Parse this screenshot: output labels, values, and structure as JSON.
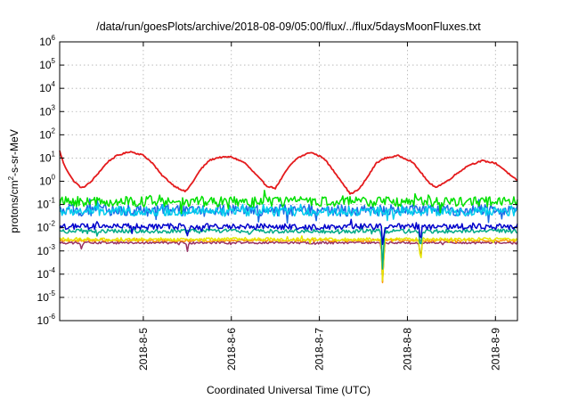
{
  "chart_data": {
    "type": "line",
    "title": "/data/run/goesPlots/archive/2018-08-09/05:00/flux/../flux/5daysMoonFluxes.txt",
    "xlabel": "Coordinated Universal Time (UTC)",
    "ylabel": "protons/cm2-s-sr-MeV",
    "ylabel_parts": {
      "pre": "protons/cm",
      "sup": "2",
      "post": "-s-sr-MeV"
    },
    "yscale": "log",
    "ylim_exp": [
      -6,
      6
    ],
    "y_ticks": [
      {
        "base": "10",
        "exp": "-6",
        "e": -6
      },
      {
        "base": "10",
        "exp": "-5",
        "e": -5
      },
      {
        "base": "10",
        "exp": "-4",
        "e": -4
      },
      {
        "base": "10",
        "exp": "-3",
        "e": -3
      },
      {
        "base": "10",
        "exp": "-2",
        "e": -2
      },
      {
        "base": "10",
        "exp": "-1",
        "e": -1
      },
      {
        "base": "10",
        "exp": "0",
        "e": 0
      },
      {
        "base": "10",
        "exp": "1",
        "e": 1
      },
      {
        "base": "10",
        "exp": "2",
        "e": 2
      },
      {
        "base": "10",
        "exp": "3",
        "e": 3
      },
      {
        "base": "10",
        "exp": "4",
        "e": 4
      },
      {
        "base": "10",
        "exp": "5",
        "e": 5
      },
      {
        "base": "10",
        "exp": "6",
        "e": 6
      }
    ],
    "xlim_days": [
      4.05,
      9.25
    ],
    "x_ticks": [
      {
        "label": "2018-8-5",
        "day": 5
      },
      {
        "label": "2018-8-6",
        "day": 6
      },
      {
        "label": "2018-8-7",
        "day": 7
      },
      {
        "label": "2018-8-8",
        "day": 8
      },
      {
        "label": "2018-8-9",
        "day": 9
      }
    ],
    "grid": true,
    "legend": "none",
    "series": [
      {
        "color": "#e41a1c",
        "style": "diurnal",
        "level_exp": 0.35,
        "amp_exp": 0.95,
        "noise": 0.03,
        "anchors": [
          [
            4.05,
            1.3
          ],
          [
            4.1,
            0.7
          ],
          [
            4.2,
            0.05
          ],
          [
            4.3,
            -0.3
          ],
          [
            4.4,
            -0.05
          ],
          [
            4.5,
            0.4
          ],
          [
            4.6,
            0.85
          ],
          [
            4.7,
            1.1
          ],
          [
            4.85,
            1.28
          ],
          [
            5.0,
            1.12
          ],
          [
            5.1,
            0.8
          ],
          [
            5.2,
            0.3
          ],
          [
            5.35,
            -0.2
          ],
          [
            5.48,
            -0.45
          ],
          [
            5.55,
            -0.1
          ],
          [
            5.65,
            0.5
          ],
          [
            5.75,
            0.9
          ],
          [
            5.85,
            1.02
          ],
          [
            6.0,
            1.05
          ],
          [
            6.15,
            0.8
          ],
          [
            6.25,
            0.4
          ],
          [
            6.4,
            -0.2
          ],
          [
            6.5,
            -0.3
          ],
          [
            6.55,
            0.0
          ],
          [
            6.65,
            0.6
          ],
          [
            6.75,
            1.0
          ],
          [
            6.9,
            1.25
          ],
          [
            7.05,
            1.0
          ],
          [
            7.15,
            0.5
          ],
          [
            7.25,
            0.0
          ],
          [
            7.35,
            -0.55
          ],
          [
            7.45,
            -0.35
          ],
          [
            7.55,
            0.2
          ],
          [
            7.65,
            0.8
          ],
          [
            7.75,
            1.0
          ],
          [
            7.9,
            1.1
          ],
          [
            8.05,
            0.85
          ],
          [
            8.15,
            0.4
          ],
          [
            8.25,
            -0.1
          ],
          [
            8.33,
            -0.25
          ],
          [
            8.45,
            0.0
          ],
          [
            8.55,
            0.3
          ],
          [
            8.7,
            0.7
          ],
          [
            8.85,
            0.88
          ],
          [
            9.0,
            0.78
          ],
          [
            9.1,
            0.5
          ],
          [
            9.2,
            0.15
          ],
          [
            9.25,
            0.05
          ]
        ]
      },
      {
        "color": "#00e000",
        "style": "noisy",
        "level_exp": -0.88,
        "noise": 0.22,
        "dips": []
      },
      {
        "color": "#00ccee",
        "style": "noisy",
        "level_exp": -1.3,
        "noise": 0.2,
        "dips": []
      },
      {
        "color": "#1a6be6",
        "style": "noisy",
        "level_exp": -1.25,
        "noise": 0.25,
        "dips": []
      },
      {
        "color": "#0000cc",
        "style": "noisy",
        "level_exp": -1.95,
        "noise": 0.13,
        "dips": [
          [
            5.5,
            -0.35
          ],
          [
            7.72,
            -0.8
          ],
          [
            8.15,
            -0.6
          ]
        ]
      },
      {
        "color": "#00aa88",
        "style": "noisy",
        "level_exp": -2.15,
        "noise": 0.09,
        "dips": [
          [
            7.72,
            -1.5
          ],
          [
            8.15,
            -0.7
          ]
        ]
      },
      {
        "color": "#e6e600",
        "style": "noisy",
        "level_exp": -2.5,
        "noise": 0.07,
        "dips": [
          [
            7.72,
            -1.8
          ],
          [
            8.15,
            -0.9
          ]
        ]
      },
      {
        "color": "#ff9900",
        "style": "noisy",
        "level_exp": -2.55,
        "noise": 0.05,
        "dips": [
          [
            7.72,
            -1.9
          ]
        ]
      },
      {
        "color": "#993366",
        "style": "noisy",
        "level_exp": -2.65,
        "noise": 0.05,
        "dips": [
          [
            4.3,
            -0.3
          ],
          [
            5.5,
            -0.35
          ],
          [
            7.72,
            -1.75
          ],
          [
            8.15,
            -0.6
          ]
        ]
      }
    ]
  }
}
